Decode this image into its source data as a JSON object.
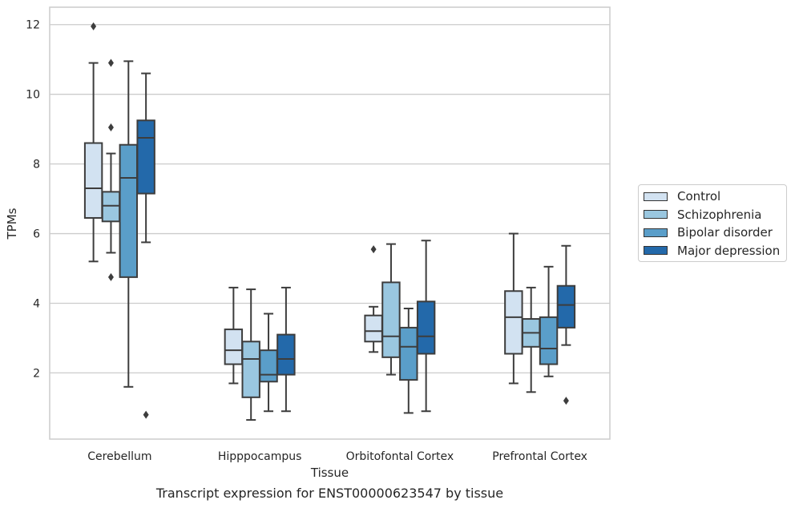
{
  "chart_data": {
    "type": "box",
    "caption": "Transcript expression for ENST00000623547 by tissue",
    "xlabel": "Tissue",
    "ylabel": "TPMs",
    "ylim": [
      0.1,
      12.5
    ],
    "yticks": [
      2,
      4,
      6,
      8,
      10,
      12
    ],
    "grid": "horizontal",
    "legend_position": "right",
    "categories": [
      "Cerebellum",
      "Hipppocampus",
      "Orbitofontal Cortex",
      "Prefrontal Cortex"
    ],
    "series": [
      {
        "name": "Control",
        "color": "#d2e2f1",
        "boxes": [
          {
            "whislo": 5.2,
            "q1": 6.45,
            "med": 7.3,
            "q3": 8.6,
            "whishi": 10.9,
            "fliers": [
              11.95
            ]
          },
          {
            "whislo": 1.7,
            "q1": 2.25,
            "med": 2.65,
            "q3": 3.25,
            "whishi": 4.45,
            "fliers": []
          },
          {
            "whislo": 2.6,
            "q1": 2.9,
            "med": 3.2,
            "q3": 3.65,
            "whishi": 3.9,
            "fliers": [
              5.55
            ]
          },
          {
            "whislo": 1.7,
            "q1": 2.55,
            "med": 3.6,
            "q3": 4.35,
            "whishi": 6.0,
            "fliers": []
          }
        ]
      },
      {
        "name": "Schizophrenia",
        "color": "#9ac7e0",
        "boxes": [
          {
            "whislo": 5.45,
            "q1": 6.35,
            "med": 6.8,
            "q3": 7.2,
            "whishi": 8.3,
            "fliers": [
              4.75,
              9.05,
              10.9
            ]
          },
          {
            "whislo": 0.65,
            "q1": 1.3,
            "med": 2.4,
            "q3": 2.9,
            "whishi": 4.4,
            "fliers": []
          },
          {
            "whislo": 1.95,
            "q1": 2.45,
            "med": 3.05,
            "q3": 4.6,
            "whishi": 5.7,
            "fliers": []
          },
          {
            "whislo": 1.45,
            "q1": 2.75,
            "med": 3.15,
            "q3": 3.55,
            "whishi": 4.45,
            "fliers": []
          }
        ]
      },
      {
        "name": "Bipolar disorder",
        "color": "#5a9ec9",
        "boxes": [
          {
            "whislo": 1.6,
            "q1": 4.75,
            "med": 7.6,
            "q3": 8.55,
            "whishi": 10.95,
            "fliers": []
          },
          {
            "whislo": 0.9,
            "q1": 1.75,
            "med": 1.95,
            "q3": 2.65,
            "whishi": 3.7,
            "fliers": []
          },
          {
            "whislo": 0.85,
            "q1": 1.8,
            "med": 2.75,
            "q3": 3.3,
            "whishi": 3.85,
            "fliers": []
          },
          {
            "whislo": 1.9,
            "q1": 2.25,
            "med": 2.7,
            "q3": 3.6,
            "whishi": 5.05,
            "fliers": []
          }
        ]
      },
      {
        "name": "Major depression",
        "color": "#2369aa",
        "boxes": [
          {
            "whislo": 5.75,
            "q1": 7.15,
            "med": 8.75,
            "q3": 9.25,
            "whishi": 10.6,
            "fliers": [
              0.8
            ]
          },
          {
            "whislo": 0.9,
            "q1": 1.95,
            "med": 2.4,
            "q3": 3.1,
            "whishi": 4.45,
            "fliers": []
          },
          {
            "whislo": 0.9,
            "q1": 2.55,
            "med": 3.05,
            "q3": 4.05,
            "whishi": 5.8,
            "fliers": []
          },
          {
            "whislo": 2.8,
            "q1": 3.3,
            "med": 3.95,
            "q3": 4.5,
            "whishi": 5.65,
            "fliers": [
              1.2
            ]
          }
        ]
      }
    ]
  }
}
